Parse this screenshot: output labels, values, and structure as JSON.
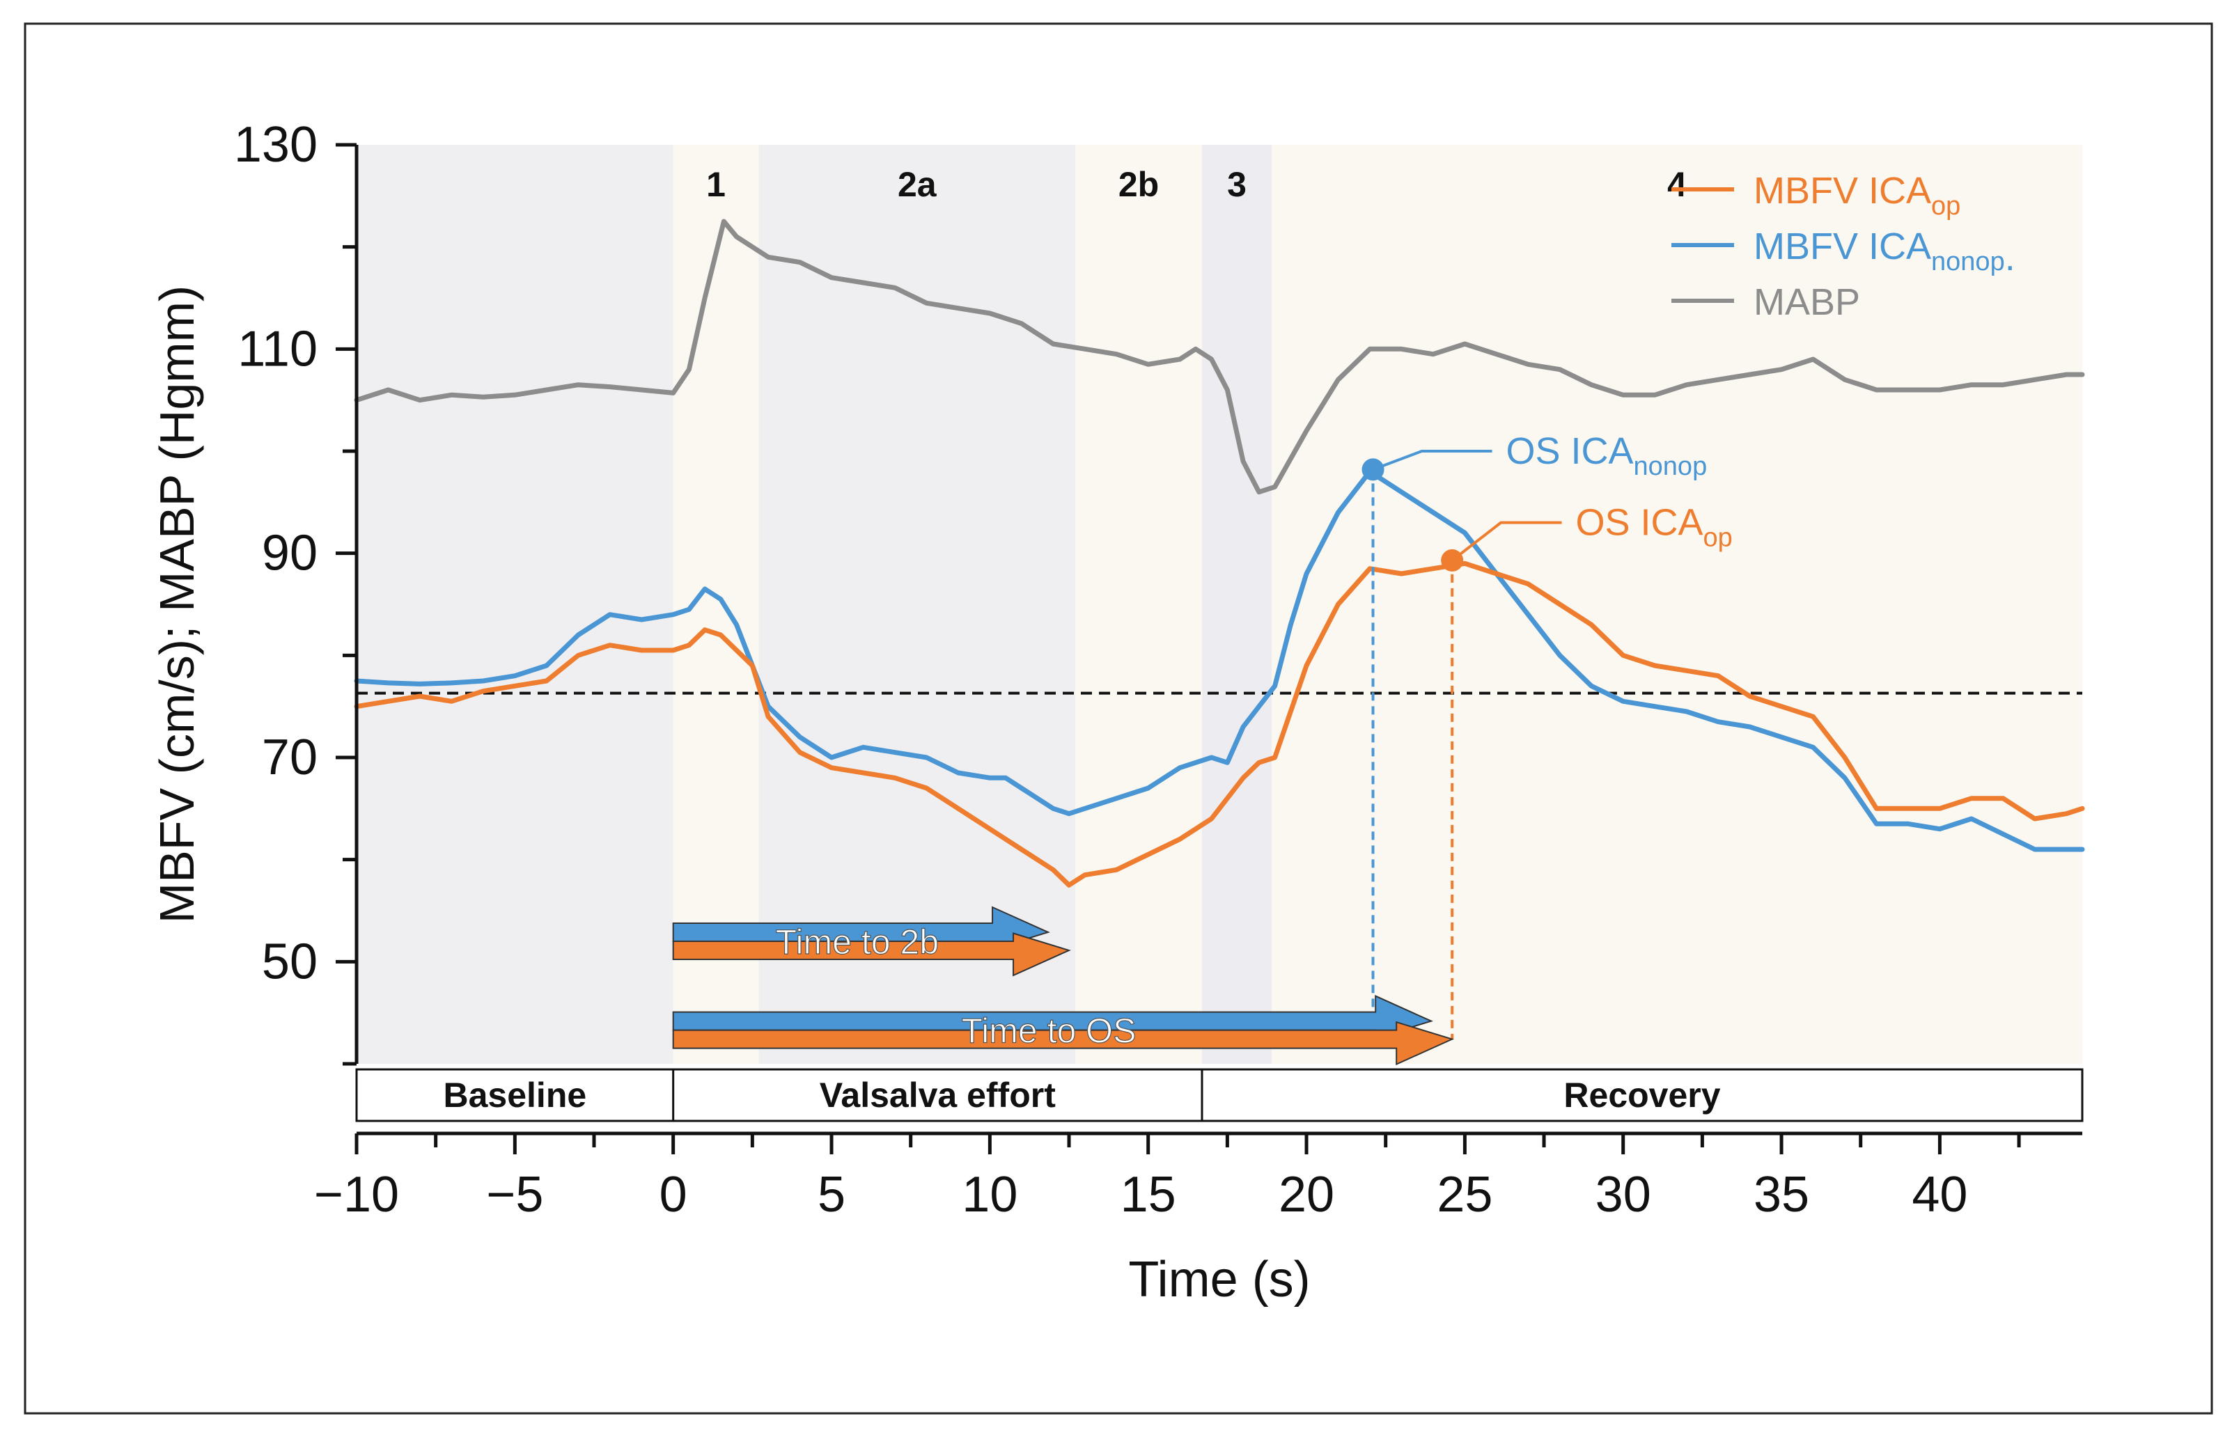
{
  "chart_data": {
    "type": "line",
    "xlabel": "Time (s)",
    "ylabel": "MBFV (cm/s); MABP (Hgmm)",
    "xlim": [
      -10,
      44.5
    ],
    "ylim": [
      40,
      130
    ],
    "x_ticks": [
      -10,
      -5,
      0,
      5,
      10,
      15,
      20,
      25,
      30,
      35,
      40
    ],
    "x_tick_labels": [
      "−10",
      "−5",
      "0",
      "5",
      "10",
      "15",
      "20",
      "25",
      "30",
      "35",
      "40"
    ],
    "y_ticks": [
      50,
      70,
      90,
      110,
      130
    ],
    "y_tick_labels": [
      "50",
      "70",
      "90",
      "110",
      "130"
    ],
    "reference_line": 76.3,
    "phases": [
      {
        "label": "",
        "start": -10,
        "end": 0,
        "color": "#efeff1"
      },
      {
        "label": "1",
        "start": 0,
        "end": 2.7,
        "color": "#faf8f0"
      },
      {
        "label": "2a",
        "start": 2.7,
        "end": 12.7,
        "color": "#efeff1"
      },
      {
        "label": "2b",
        "start": 12.7,
        "end": 16.7,
        "color": "#faf8f0"
      },
      {
        "label": "3",
        "start": 16.7,
        "end": 18.9,
        "color": "#ededf1"
      },
      {
        "label": "4",
        "start": 18.9,
        "end": 44.5,
        "color": "#faf8f0"
      }
    ],
    "periods": [
      {
        "label": "Baseline",
        "start": -10,
        "end": 0
      },
      {
        "label": "Valsalva effort",
        "start": 0,
        "end": 16.7
      },
      {
        "label": "Recovery",
        "start": 16.7,
        "end": 44.5
      }
    ],
    "series": [
      {
        "name": "MABP",
        "legend_main": "MABP",
        "legend_sub": "",
        "legend_suffix": "",
        "color": "#8c8c8c",
        "points": [
          [
            -10,
            105
          ],
          [
            -9,
            106
          ],
          [
            -8,
            105
          ],
          [
            -7,
            105.5
          ],
          [
            -6,
            105.3
          ],
          [
            -5,
            105.5
          ],
          [
            -4,
            106
          ],
          [
            -3,
            106.5
          ],
          [
            -2,
            106.3
          ],
          [
            -1,
            106
          ],
          [
            0,
            105.7
          ],
          [
            0.5,
            108
          ],
          [
            1,
            115
          ],
          [
            1.6,
            122.5
          ],
          [
            2,
            121
          ],
          [
            3,
            119
          ],
          [
            4,
            118.5
          ],
          [
            5,
            117
          ],
          [
            6,
            116.5
          ],
          [
            7,
            116
          ],
          [
            8,
            114.5
          ],
          [
            9,
            114
          ],
          [
            10,
            113.5
          ],
          [
            11,
            112.5
          ],
          [
            12,
            110.5
          ],
          [
            13,
            110
          ],
          [
            14,
            109.5
          ],
          [
            15,
            108.5
          ],
          [
            16,
            109
          ],
          [
            16.5,
            110
          ],
          [
            17,
            109
          ],
          [
            17.5,
            106
          ],
          [
            18,
            99
          ],
          [
            18.5,
            96
          ],
          [
            19,
            96.5
          ],
          [
            20,
            102
          ],
          [
            21,
            107
          ],
          [
            22,
            110
          ],
          [
            23,
            110
          ],
          [
            24,
            109.5
          ],
          [
            25,
            110.5
          ],
          [
            26,
            109.5
          ],
          [
            27,
            108.5
          ],
          [
            28,
            108
          ],
          [
            29,
            106.5
          ],
          [
            30,
            105.5
          ],
          [
            31,
            105.5
          ],
          [
            32,
            106.5
          ],
          [
            33,
            107
          ],
          [
            34,
            107.5
          ],
          [
            35,
            108
          ],
          [
            36,
            109
          ],
          [
            37,
            107
          ],
          [
            38,
            106
          ],
          [
            39,
            106
          ],
          [
            40,
            106
          ],
          [
            41,
            106.5
          ],
          [
            42,
            106.5
          ],
          [
            43,
            107
          ],
          [
            44,
            107.5
          ],
          [
            44.5,
            107.5
          ]
        ]
      },
      {
        "name": "MBFV ICAnonop",
        "legend_main": "MBFV ICA",
        "legend_sub": "nonop",
        "legend_suffix": ".",
        "color": "#4a96d4",
        "points": [
          [
            -10,
            77.5
          ],
          [
            -9,
            77.3
          ],
          [
            -8,
            77.2
          ],
          [
            -7,
            77.3
          ],
          [
            -6,
            77.5
          ],
          [
            -5,
            78
          ],
          [
            -4,
            79
          ],
          [
            -3,
            82
          ],
          [
            -2,
            84
          ],
          [
            -1,
            83.5
          ],
          [
            0,
            84
          ],
          [
            0.5,
            84.5
          ],
          [
            1,
            86.5
          ],
          [
            1.5,
            85.5
          ],
          [
            2,
            83
          ],
          [
            3,
            75
          ],
          [
            4,
            72
          ],
          [
            5,
            70
          ],
          [
            6,
            71
          ],
          [
            7,
            70.5
          ],
          [
            8,
            70
          ],
          [
            9,
            68.5
          ],
          [
            10,
            68
          ],
          [
            10.5,
            68
          ],
          [
            11,
            67
          ],
          [
            12,
            65
          ],
          [
            12.5,
            64.5
          ],
          [
            13,
            65
          ],
          [
            14,
            66
          ],
          [
            15,
            67
          ],
          [
            16,
            69
          ],
          [
            16.5,
            69.5
          ],
          [
            17,
            70
          ],
          [
            17.5,
            69.5
          ],
          [
            18,
            73
          ],
          [
            19,
            77
          ],
          [
            19.5,
            83
          ],
          [
            20,
            88
          ],
          [
            21,
            94
          ],
          [
            22,
            98
          ],
          [
            23,
            96
          ],
          [
            24,
            94
          ],
          [
            25,
            92
          ],
          [
            26,
            88
          ],
          [
            27,
            84
          ],
          [
            28,
            80
          ],
          [
            29,
            77
          ],
          [
            30,
            75.5
          ],
          [
            31,
            75
          ],
          [
            32,
            74.5
          ],
          [
            33,
            73.5
          ],
          [
            34,
            73
          ],
          [
            35,
            72
          ],
          [
            36,
            71
          ],
          [
            37,
            68
          ],
          [
            38,
            63.5
          ],
          [
            39,
            63.5
          ],
          [
            40,
            63
          ],
          [
            41,
            64
          ],
          [
            42,
            62.5
          ],
          [
            43,
            61
          ],
          [
            44,
            61
          ],
          [
            44.5,
            61
          ]
        ]
      },
      {
        "name": "MBFV ICAop",
        "legend_main": "MBFV ICA",
        "legend_sub": "op",
        "legend_suffix": "",
        "color": "#ee7d30",
        "points": [
          [
            -10,
            75
          ],
          [
            -9,
            75.5
          ],
          [
            -8,
            76
          ],
          [
            -7,
            75.5
          ],
          [
            -6,
            76.5
          ],
          [
            -5,
            77
          ],
          [
            -4,
            77.5
          ],
          [
            -3,
            80
          ],
          [
            -2,
            81
          ],
          [
            -1,
            80.5
          ],
          [
            0,
            80.5
          ],
          [
            0.5,
            81
          ],
          [
            1,
            82.5
          ],
          [
            1.5,
            82
          ],
          [
            2,
            80.5
          ],
          [
            2.5,
            79
          ],
          [
            3,
            74
          ],
          [
            4,
            70.5
          ],
          [
            5,
            69
          ],
          [
            6,
            68.5
          ],
          [
            7,
            68
          ],
          [
            8,
            67
          ],
          [
            9,
            65
          ],
          [
            10,
            63
          ],
          [
            11,
            61
          ],
          [
            12,
            59
          ],
          [
            12.5,
            57.5
          ],
          [
            13,
            58.5
          ],
          [
            14,
            59
          ],
          [
            15,
            60.5
          ],
          [
            16,
            62
          ],
          [
            17,
            64
          ],
          [
            18,
            68
          ],
          [
            18.5,
            69.5
          ],
          [
            19,
            70
          ],
          [
            20,
            79
          ],
          [
            21,
            85
          ],
          [
            22,
            88.5
          ],
          [
            23,
            88
          ],
          [
            24,
            88.5
          ],
          [
            25,
            89
          ],
          [
            26,
            88
          ],
          [
            27,
            87
          ],
          [
            28,
            85
          ],
          [
            29,
            83
          ],
          [
            30,
            80
          ],
          [
            31,
            79
          ],
          [
            32,
            78.5
          ],
          [
            33,
            78
          ],
          [
            34,
            76
          ],
          [
            35,
            75
          ],
          [
            36,
            74
          ],
          [
            37,
            70
          ],
          [
            38,
            65
          ],
          [
            39,
            65
          ],
          [
            40,
            65
          ],
          [
            41,
            66
          ],
          [
            42,
            66
          ],
          [
            43,
            64
          ],
          [
            44,
            64.5
          ],
          [
            44.5,
            65
          ]
        ]
      }
    ],
    "overshoot_markers": [
      {
        "label_main": "OS ICA",
        "label_sub": "nonop",
        "x": 22.1,
        "y": 98.2,
        "color": "#4a96d4",
        "label_x": 26.3,
        "label_y": 100
      },
      {
        "label_main": "OS ICA",
        "label_sub": "op",
        "x": 24.6,
        "y": 89.3,
        "color": "#ee7d30",
        "label_x": 28.5,
        "label_y": 93
      }
    ],
    "time_arrows": [
      {
        "label": "Time to 2b",
        "start": 0,
        "end": 12.5,
        "y_value": 52
      },
      {
        "label": "Time to OS",
        "start": 0,
        "end": 24.6,
        "y_value": 43.3
      }
    ]
  }
}
